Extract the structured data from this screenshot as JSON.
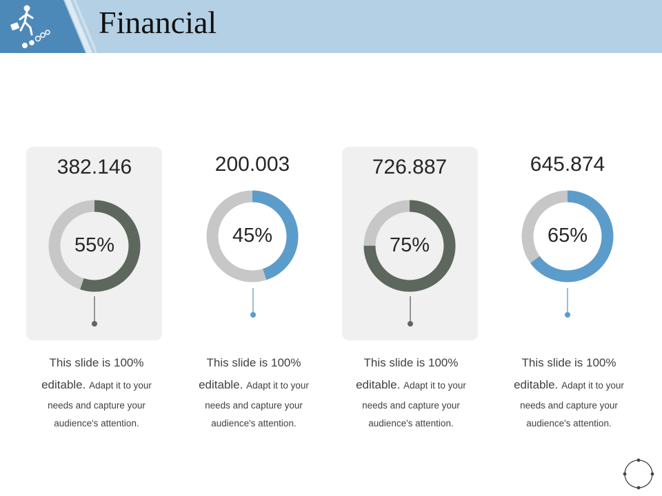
{
  "header": {
    "title": "Financial",
    "icon": "businessman-climbing-coins-icon"
  },
  "colors": {
    "gray_ring": "#c7c7c7",
    "dark": "#5e675d",
    "blue": "#5c9ccb",
    "header_band": "#b3d0e4",
    "header_dark": "#4d89b8",
    "card_bg": "#f0f0f0"
  },
  "chart_data": {
    "type": "donut",
    "items": [
      {
        "value": "382.146",
        "percent": 55,
        "percent_label": "55%",
        "color": "#5e675d"
      },
      {
        "value": "200.003",
        "percent": 45,
        "percent_label": "45%",
        "color": "#5c9ccb"
      },
      {
        "value": "726.887",
        "percent": 75,
        "percent_label": "75%",
        "color": "#5e675d"
      },
      {
        "value": "645.874",
        "percent": 65,
        "percent_label": "65%",
        "color": "#5c9ccb"
      }
    ]
  },
  "cards": [
    {
      "line1": "This slide is 100%",
      "line2a": "editable.",
      "line2b": "Adapt it to your",
      "line3": "needs and capture your",
      "line4": "audience's attention."
    },
    {
      "line1": "This slide is 100%",
      "line2a": "editable.",
      "line2b": "Adapt it to your",
      "line3": "needs and capture your",
      "line4": "audience's attention."
    },
    {
      "line1": "This slide is 100%",
      "line2a": "editable.",
      "line2b": "Adapt it to your",
      "line3": "needs and capture your",
      "line4": "audience's attention."
    },
    {
      "line1": "This slide is 100%",
      "line2a": "editable.",
      "line2b": "Adapt it to your",
      "line3": "needs and capture your",
      "line4": "audience's attention."
    }
  ],
  "footer": {
    "nav_icon": "circular-nav-icon"
  }
}
